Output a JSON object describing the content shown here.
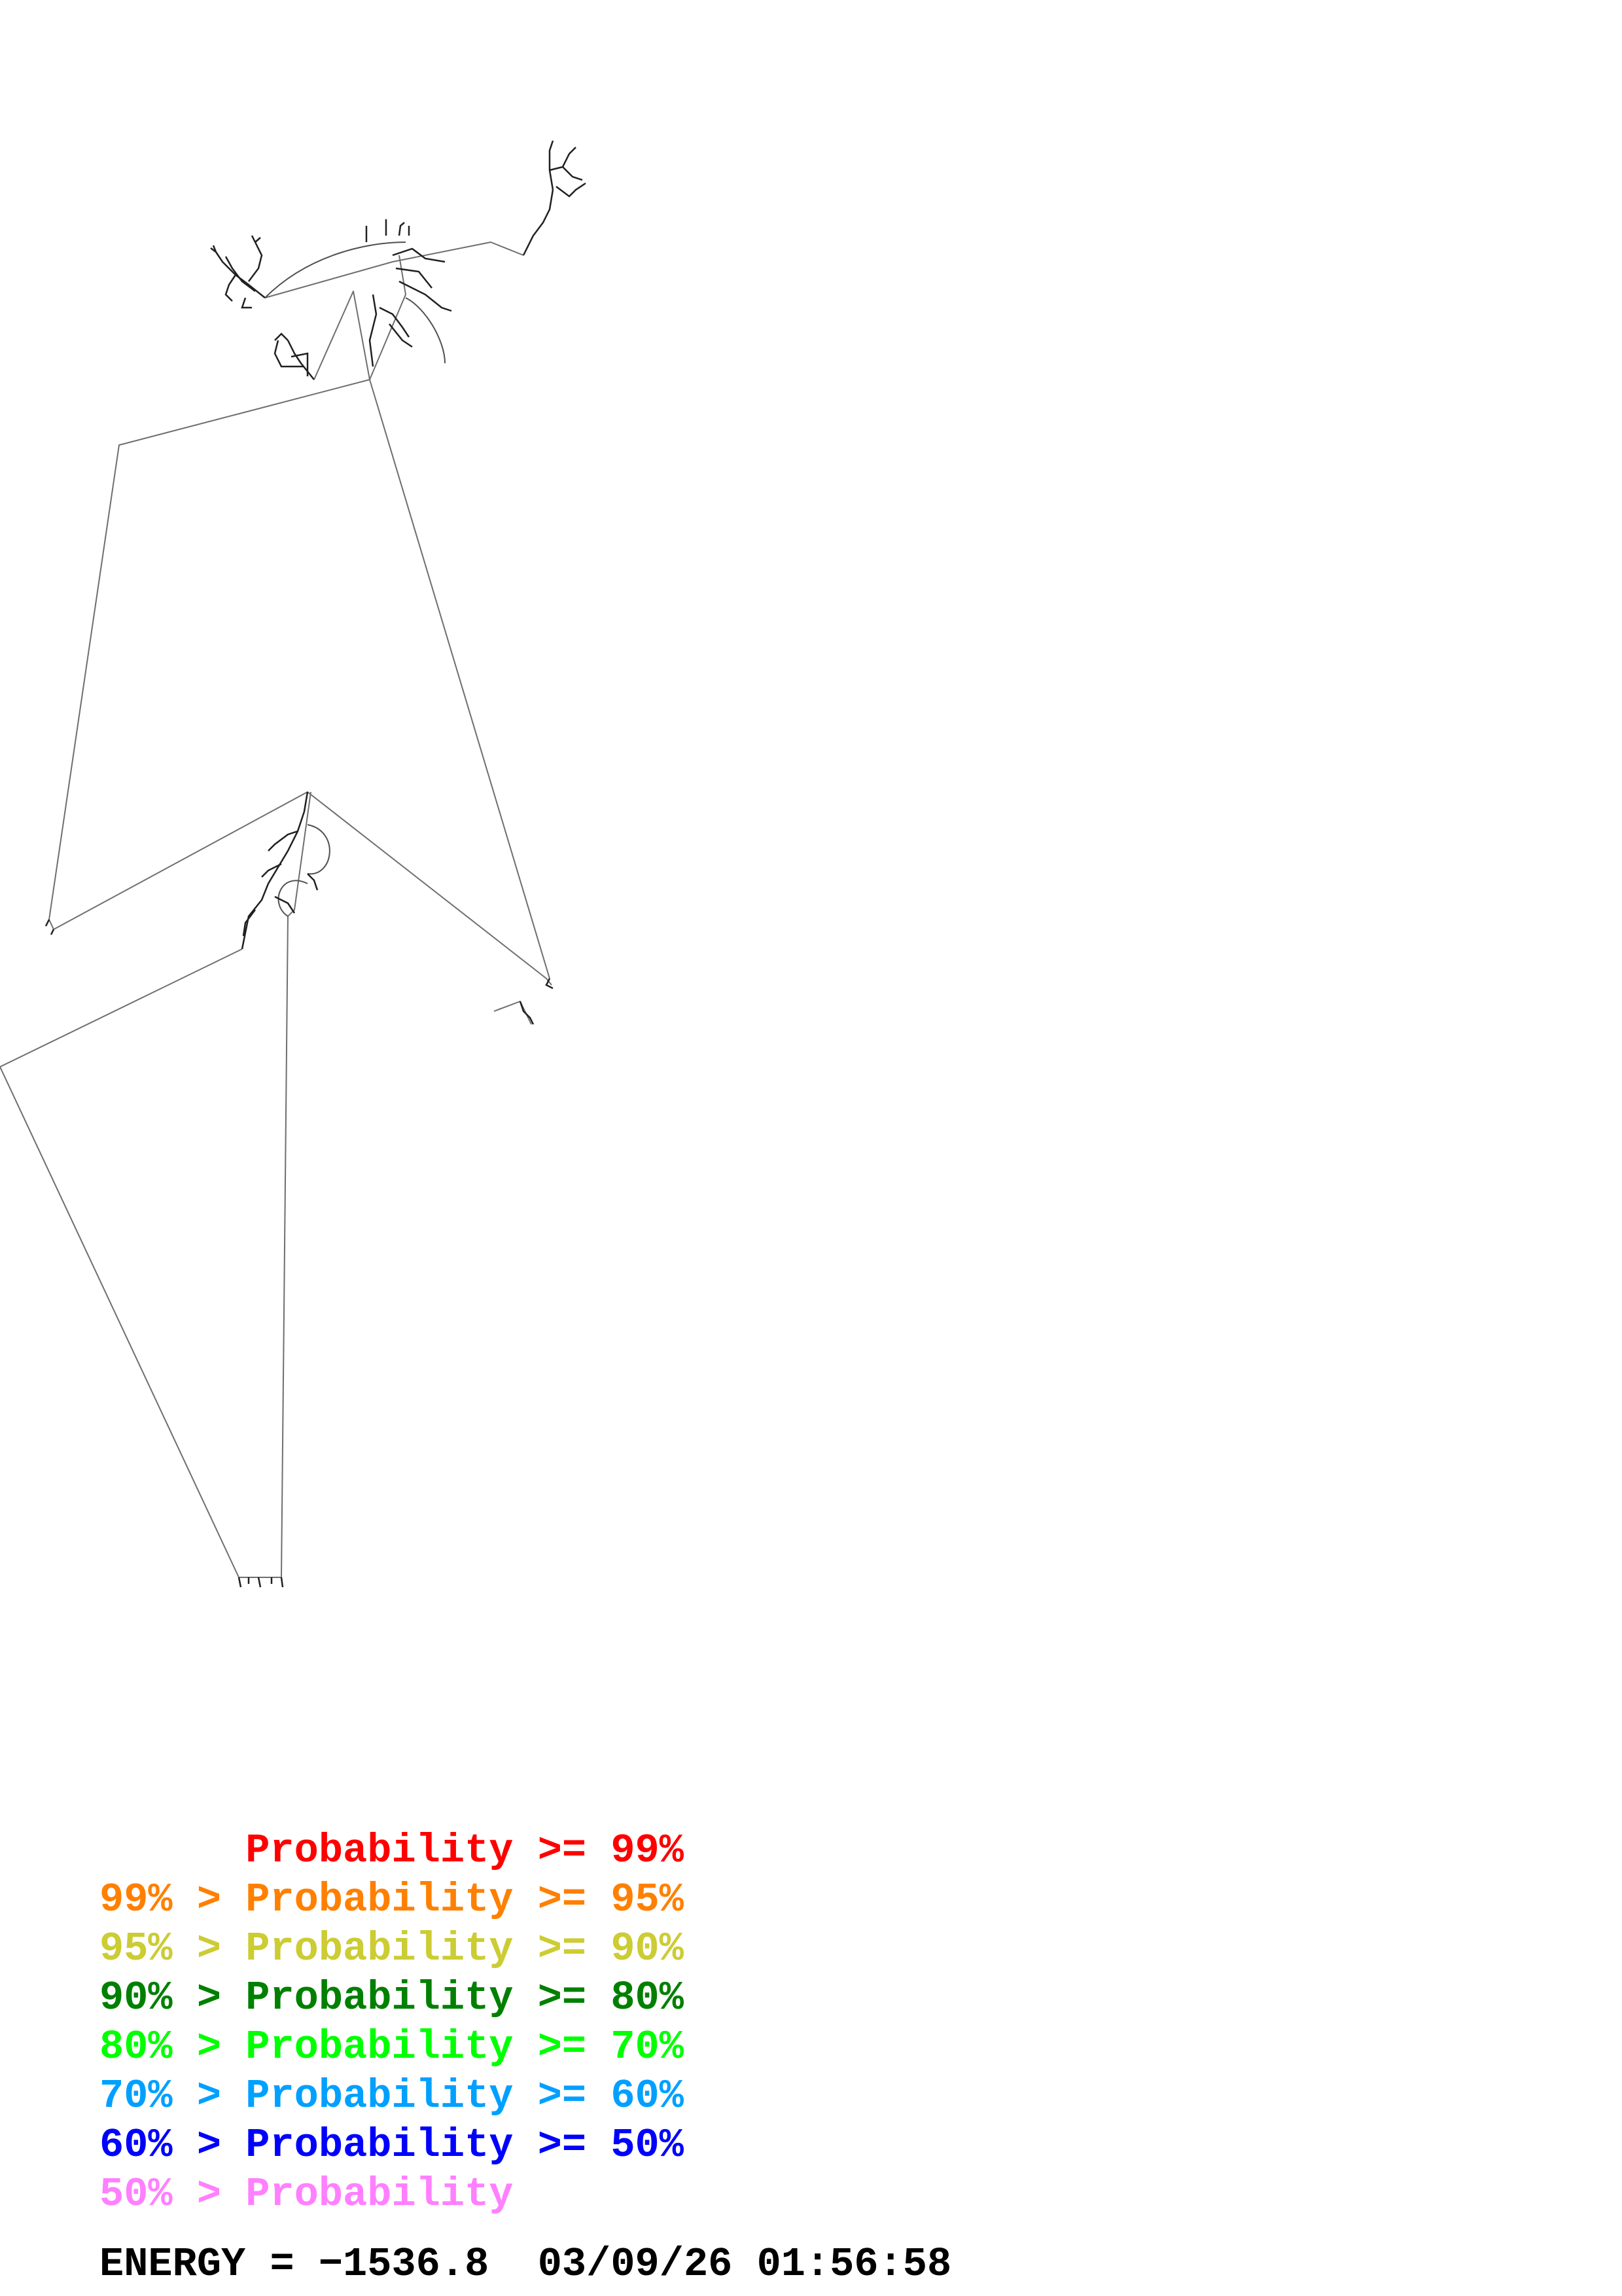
{
  "legend": {
    "rows": [
      {
        "label": "      Probability >= 99%",
        "color": "#ff0000"
      },
      {
        "label": "99% > Probability >= 95%",
        "color": "#ff8000"
      },
      {
        "label": "95% > Probability >= 90%",
        "color": "#cccc33"
      },
      {
        "label": "90% > Probability >= 80%",
        "color": "#008000"
      },
      {
        "label": "80% > Probability >= 70%",
        "color": "#00ff00"
      },
      {
        "label": "70% > Probability >= 60%",
        "color": "#00a0ff"
      },
      {
        "label": "60% > Probability >= 50%",
        "color": "#0000ff"
      },
      {
        "label": "50% > Probability",
        "color": "#ff80ff"
      }
    ]
  },
  "footer": {
    "energy_text": "ENERGY = −1536.8  03/09/26 01:56:58"
  },
  "structure": {
    "line_color": "#6e6e6e",
    "helix_color": "#202020"
  }
}
